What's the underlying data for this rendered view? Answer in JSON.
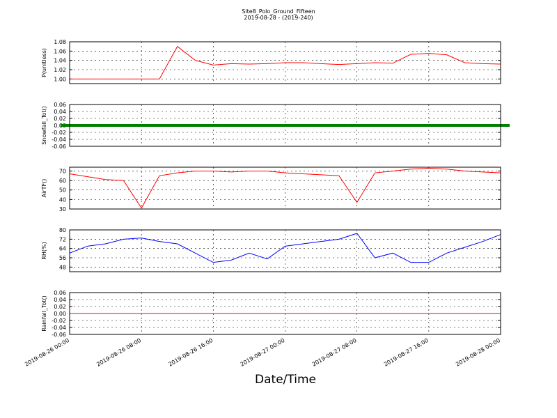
{
  "chart_data": [
    {
      "type": "line",
      "title": "Site8_Polo_Ground_Fifteen",
      "subtitle": "2019-08-28 - (2019-240)",
      "ylabel": "P(unitless)",
      "x": [
        "2019-08-26 00:00",
        "2019-08-26 02:00",
        "2019-08-26 04:00",
        "2019-08-26 06:00",
        "2019-08-26 08:00",
        "2019-08-26 10:00",
        "2019-08-26 12:00",
        "2019-08-26 14:00",
        "2019-08-26 16:00",
        "2019-08-26 18:00",
        "2019-08-26 20:00",
        "2019-08-26 22:00",
        "2019-08-27 00:00",
        "2019-08-27 02:00",
        "2019-08-27 04:00",
        "2019-08-27 06:00",
        "2019-08-27 08:00",
        "2019-08-27 10:00",
        "2019-08-27 12:00",
        "2019-08-27 14:00",
        "2019-08-27 16:00",
        "2019-08-27 18:00",
        "2019-08-27 20:00",
        "2019-08-27 22:00",
        "2019-08-28 00:00"
      ],
      "series": [
        {
          "name": "P",
          "color": "#ff0000",
          "values": [
            1.0,
            1.0,
            1.0,
            1.0,
            1.0,
            1.0,
            1.07,
            1.04,
            1.03,
            1.033,
            1.032,
            1.033,
            1.035,
            1.035,
            1.033,
            1.031,
            1.033,
            1.035,
            1.034,
            1.053,
            1.055,
            1.052,
            1.035,
            1.033,
            1.032
          ]
        }
      ],
      "xlim": [
        "2019-08-26 00:00",
        "2019-08-28 00:00"
      ],
      "xticks": [
        "2019-08-26 00:00",
        "2019-08-26 08:00",
        "2019-08-26 16:00",
        "2019-08-27 00:00",
        "2019-08-27 08:00",
        "2019-08-27 16:00",
        "2019-08-28 00:00"
      ],
      "ylim": [
        0.99,
        1.08
      ],
      "yticks": [
        {
          "value": 1,
          "label": "1.00"
        },
        1.02,
        1.04,
        1.06,
        1.08
      ],
      "grid": true
    },
    {
      "type": "scatter",
      "ylabel": "Snowfall_Tot()",
      "x": [
        "2019-08-26 00:00",
        "2019-08-26 02:00",
        "2019-08-26 04:00",
        "2019-08-26 06:00",
        "2019-08-26 08:00",
        "2019-08-26 10:00",
        "2019-08-26 12:00",
        "2019-08-26 14:00",
        "2019-08-26 16:00",
        "2019-08-26 18:00",
        "2019-08-26 20:00",
        "2019-08-26 22:00",
        "2019-08-27 00:00",
        "2019-08-27 02:00",
        "2019-08-27 04:00",
        "2019-08-27 06:00",
        "2019-08-27 08:00",
        "2019-08-27 10:00",
        "2019-08-27 12:00",
        "2019-08-27 14:00",
        "2019-08-27 16:00",
        "2019-08-27 18:00",
        "2019-08-27 20:00",
        "2019-08-27 22:00",
        "2019-08-28 00:00"
      ],
      "series": [
        {
          "name": "Snowfall_Tot",
          "color": "#008000",
          "values": [
            0,
            0,
            0,
            0,
            0,
            0,
            0,
            0,
            0,
            0,
            0,
            0,
            0,
            0,
            0,
            0,
            0,
            0,
            0,
            0,
            0,
            0,
            0,
            0,
            0
          ]
        }
      ],
      "xlim": [
        "2019-08-26 00:00",
        "2019-08-28 00:00"
      ],
      "xticks": [
        "2019-08-26 00:00",
        "2019-08-26 08:00",
        "2019-08-26 16:00",
        "2019-08-27 00:00",
        "2019-08-27 08:00",
        "2019-08-27 16:00",
        "2019-08-28 00:00"
      ],
      "ylim": [
        -0.06,
        0.06
      ],
      "yticks": [
        -0.06,
        -0.04,
        -0.02,
        {
          "value": 0,
          "label": "0.00"
        },
        0.02,
        0.04,
        0.06
      ],
      "grid": true
    },
    {
      "type": "line",
      "ylabel": "AirTF()",
      "x": [
        "2019-08-26 00:00",
        "2019-08-26 02:00",
        "2019-08-26 04:00",
        "2019-08-26 06:00",
        "2019-08-26 08:00",
        "2019-08-26 10:00",
        "2019-08-26 12:00",
        "2019-08-26 14:00",
        "2019-08-26 16:00",
        "2019-08-26 18:00",
        "2019-08-26 20:00",
        "2019-08-26 22:00",
        "2019-08-27 00:00",
        "2019-08-27 02:00",
        "2019-08-27 04:00",
        "2019-08-27 06:00",
        "2019-08-27 08:00",
        "2019-08-27 10:00",
        "2019-08-27 12:00",
        "2019-08-27 14:00",
        "2019-08-27 16:00",
        "2019-08-27 18:00",
        "2019-08-27 20:00",
        "2019-08-27 22:00",
        "2019-08-28 00:00"
      ],
      "series": [
        {
          "name": "AirTF",
          "color": "#ff0000",
          "values": [
            67,
            64,
            61,
            60,
            31,
            65,
            68,
            70,
            70,
            69,
            70,
            70,
            68,
            67,
            66,
            65,
            37,
            68,
            70,
            72,
            73,
            72,
            70,
            69,
            68
          ]
        }
      ],
      "xlim": [
        "2019-08-26 00:00",
        "2019-08-28 00:00"
      ],
      "xticks": [
        "2019-08-26 00:00",
        "2019-08-26 08:00",
        "2019-08-26 16:00",
        "2019-08-27 00:00",
        "2019-08-27 08:00",
        "2019-08-27 16:00",
        "2019-08-28 00:00"
      ],
      "ylim": [
        30,
        74
      ],
      "yticks": [
        30,
        40,
        50,
        60,
        70
      ],
      "grid": true
    },
    {
      "type": "line",
      "ylabel": "RH(%)",
      "x": [
        "2019-08-26 00:00",
        "2019-08-26 02:00",
        "2019-08-26 04:00",
        "2019-08-26 06:00",
        "2019-08-26 08:00",
        "2019-08-26 10:00",
        "2019-08-26 12:00",
        "2019-08-26 14:00",
        "2019-08-26 16:00",
        "2019-08-26 18:00",
        "2019-08-26 20:00",
        "2019-08-26 22:00",
        "2019-08-27 00:00",
        "2019-08-27 02:00",
        "2019-08-27 04:00",
        "2019-08-27 06:00",
        "2019-08-27 08:00",
        "2019-08-27 10:00",
        "2019-08-27 12:00",
        "2019-08-27 14:00",
        "2019-08-27 16:00",
        "2019-08-27 18:00",
        "2019-08-27 20:00",
        "2019-08-27 22:00",
        "2019-08-28 00:00"
      ],
      "series": [
        {
          "name": "RH",
          "color": "#0000ff",
          "values": [
            60,
            66,
            68,
            72,
            73,
            70,
            68,
            60,
            52,
            54,
            60,
            55,
            66,
            68,
            70,
            72,
            77,
            56,
            60,
            52,
            52,
            60,
            65,
            70,
            76
          ]
        }
      ],
      "xlim": [
        "2019-08-26 00:00",
        "2019-08-28 00:00"
      ],
      "xticks": [
        "2019-08-26 00:00",
        "2019-08-26 08:00",
        "2019-08-26 16:00",
        "2019-08-27 00:00",
        "2019-08-27 08:00",
        "2019-08-27 16:00",
        "2019-08-28 00:00"
      ],
      "ylim": [
        44,
        80
      ],
      "yticks": [
        48,
        56,
        64,
        72,
        80
      ],
      "grid": true
    },
    {
      "type": "line",
      "ylabel": "Rainfall_Tot()",
      "xlabel": "Date/Time",
      "x": [
        "2019-08-26 00:00",
        "2019-08-26 02:00",
        "2019-08-26 04:00",
        "2019-08-26 06:00",
        "2019-08-26 08:00",
        "2019-08-26 10:00",
        "2019-08-26 12:00",
        "2019-08-26 14:00",
        "2019-08-26 16:00",
        "2019-08-26 18:00",
        "2019-08-26 20:00",
        "2019-08-26 22:00",
        "2019-08-27 00:00",
        "2019-08-27 02:00",
        "2019-08-27 04:00",
        "2019-08-27 06:00",
        "2019-08-27 08:00",
        "2019-08-27 10:00",
        "2019-08-27 12:00",
        "2019-08-27 14:00",
        "2019-08-27 16:00",
        "2019-08-27 18:00",
        "2019-08-27 20:00",
        "2019-08-27 22:00",
        "2019-08-28 00:00"
      ],
      "series": [
        {
          "name": "Rainfall_Tot",
          "color": "#ff0000",
          "values": [
            0,
            0,
            0,
            0,
            0,
            0,
            0,
            0,
            0,
            0,
            0,
            0,
            0,
            0,
            0,
            0,
            0,
            0,
            0,
            0,
            0,
            0,
            0,
            0,
            0
          ]
        }
      ],
      "xlim": [
        "2019-08-26 00:00",
        "2019-08-28 00:00"
      ],
      "xticks": [
        "2019-08-26 00:00",
        "2019-08-26 08:00",
        "2019-08-26 16:00",
        "2019-08-27 00:00",
        "2019-08-27 08:00",
        "2019-08-27 16:00",
        "2019-08-28 00:00"
      ],
      "ylim": [
        -0.06,
        0.06
      ],
      "yticks": [
        -0.06,
        -0.04,
        -0.02,
        {
          "value": 0,
          "label": "0.00"
        },
        0.02,
        0.04,
        0.06
      ],
      "grid": true
    }
  ]
}
